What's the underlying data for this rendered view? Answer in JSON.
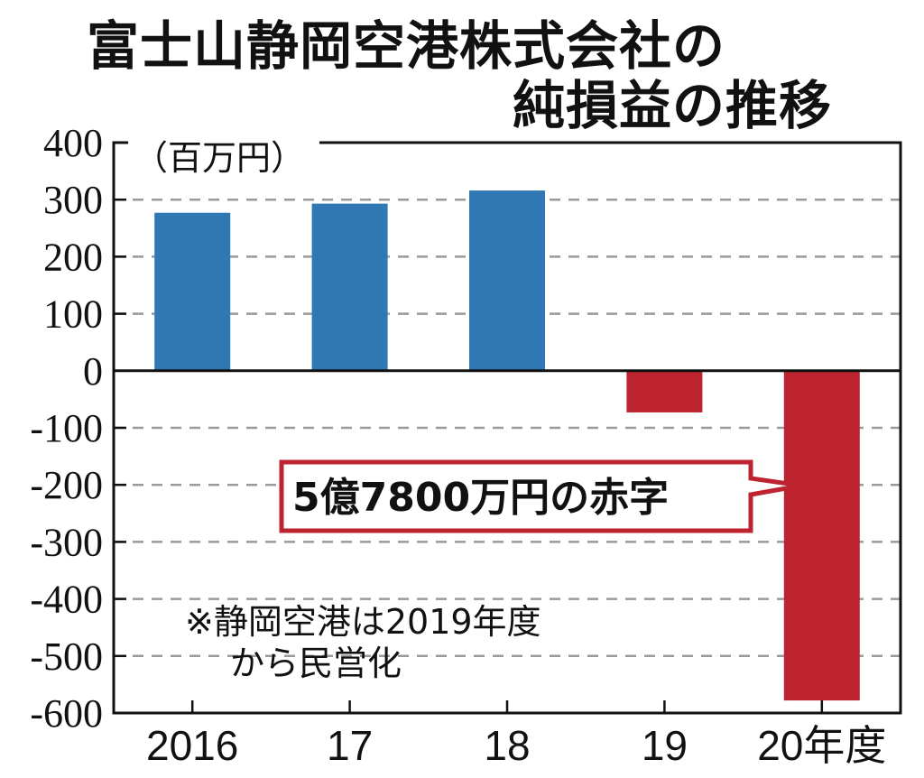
{
  "title_line1": "富士山静岡空港株式会社の",
  "title_line2": "純損益の推移",
  "colors": {
    "positive": "#2f78b3",
    "negative": "#be2430",
    "callout_border": "#be2430",
    "grid": "#9a9a9a"
  },
  "chart_data": {
    "type": "bar",
    "title": "富士山静岡空港株式会社の純損益の推移",
    "unit_label": "（百万円）",
    "categories": [
      "2016",
      "17",
      "18",
      "19",
      "20年度"
    ],
    "values": [
      277,
      293,
      316,
      -73,
      -578
    ],
    "ylim": [
      -600,
      400
    ],
    "yticks": [
      "400",
      "300",
      "200",
      "100",
      "0",
      "-100",
      "-200",
      "-300",
      "-400",
      "-500",
      "-600"
    ],
    "grid": true,
    "callout": "5億7800万円の赤字",
    "note_line1": "※静岡空港は2019年度",
    "note_line2": "から民営化"
  }
}
